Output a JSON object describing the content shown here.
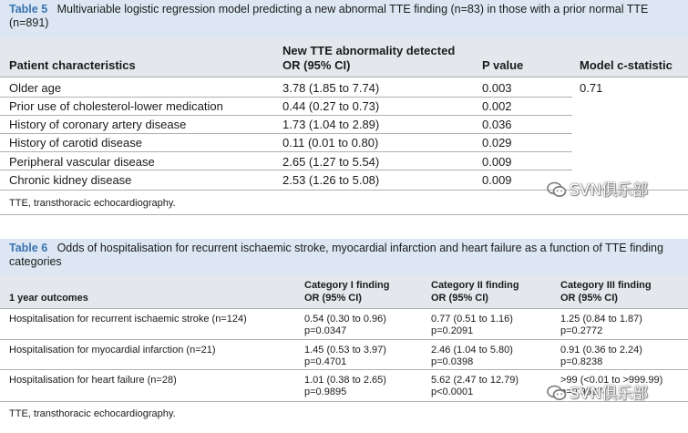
{
  "table5": {
    "label": "Table 5",
    "caption": "Multivariable logistic regression model predicting a new abnormal TTE finding (n=83) in those with a prior normal TTE (n=891)",
    "headers": {
      "patient": "Patient characteristics",
      "or_line1": "New TTE abnormality detected",
      "or_line2": "OR (95% CI)",
      "p": "P value",
      "c": "Model c-statistic"
    },
    "rows": [
      {
        "name": "Older age",
        "or": "3.78 (1.85 to 7.74)",
        "p": "0.003",
        "c": "0.71"
      },
      {
        "name": "Prior use of cholesterol-lower medication",
        "or": "0.44 (0.27 to 0.73)",
        "p": "0.002",
        "c": ""
      },
      {
        "name": "History of coronary artery disease",
        "or": "1.73 (1.04 to 2.89)",
        "p": "0.036",
        "c": ""
      },
      {
        "name": "History of carotid disease",
        "or": "0.11 (0.01 to 0.80)",
        "p": "0.029",
        "c": ""
      },
      {
        "name": "Peripheral vascular disease",
        "or": "2.65 (1.27 to 5.54)",
        "p": "0.009",
        "c": ""
      },
      {
        "name": "Chronic kidney disease",
        "or": "2.53 (1.26 to 5.08)",
        "p": "0.009",
        "c": ""
      }
    ],
    "footnote": "TTE, transthoracic echocardiography."
  },
  "table6": {
    "label": "Table 6",
    "caption": "Odds of hospitalisation for recurrent ischaemic stroke, myocardial infarction and heart failure as a function of TTE finding categories",
    "headers": {
      "outcome": "1 year outcomes",
      "c1_line1": "Category I finding",
      "c1_line2": "OR (95% CI)",
      "c2_line1": "Category II finding",
      "c2_line2": "OR (95% CI)",
      "c3_line1": "Category III finding",
      "c3_line2": "OR (95% CI)"
    },
    "rows": [
      {
        "name": "Hospitalisation for recurrent ischaemic stroke (n=124)",
        "c1": "0.54 (0.30 to 0.96)",
        "c1p": "p=0.0347",
        "c2": "0.77 (0.51 to 1.16)",
        "c2p": "p=0.2091",
        "c3": "1.25 (0.84 to 1.87)",
        "c3p": "p=0.2772"
      },
      {
        "name": "Hospitalisation for myocardial infarction (n=21)",
        "c1": "1.45 (0.53 to 3.97)",
        "c1p": "p=0.4701",
        "c2": "2.46 (1.04 to 5.80)",
        "c2p": "p=0.0398",
        "c3": "0.91 (0.36 to 2.24)",
        "c3p": "p=0.8238"
      },
      {
        "name": "Hospitalisation for heart failure (n=28)",
        "c1": "1.01 (0.38 to 2.65)",
        "c1p": "p=0.9895",
        "c2": "5.62 (2.47 to 12.79)",
        "c2p": "p<0.0001",
        "c3": ">99 (<0.01 to >999.99)",
        "c3p": "p=0.9527"
      }
    ],
    "footnote": "TTE, transthoracic echocardiography."
  },
  "watermark": "SVN俱乐部",
  "colors": {
    "caption_bg": "#dce7f3",
    "header_bg": "#e4e8ec",
    "label": "#3a73b0",
    "rule": "#a9b1b9"
  }
}
